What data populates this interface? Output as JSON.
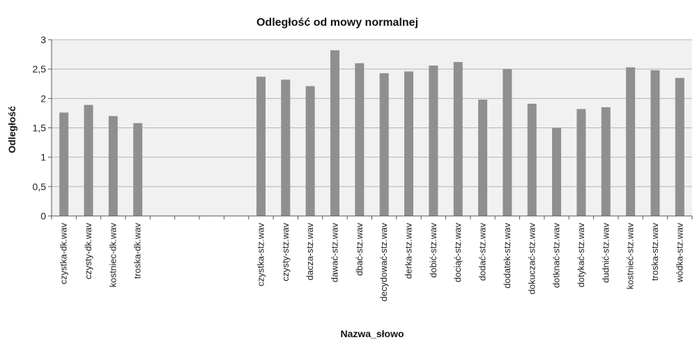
{
  "chart_data": {
    "type": "bar",
    "title": "Odległość od mowy normalnej",
    "xlabel": "Nazwa_słowo",
    "ylabel": "Odległość",
    "ylim": [
      0,
      3
    ],
    "yticks": [
      "0",
      "0,5",
      "1",
      "1,5",
      "2",
      "2,5",
      "3"
    ],
    "grid": true,
    "categories": [
      "czystka-dk.wav",
      "czysty-dk.wav",
      "kostniec-dk.wav",
      "troska-dk.wav",
      "",
      "",
      "",
      "",
      "czystka-stz.wav",
      "czysty-stz.wav",
      "dacza-stz.wav",
      "dawać-stz.wav",
      "dbać-stz.wav",
      "decydować-stz.wav",
      "derka-stz.wav",
      "dobić-stz.wav",
      "dociąć-stz.wav",
      "dodać-stz.wav",
      "dodatek-stz.wav",
      "dokuczać-stz.wav",
      "dotknać-stz.wav",
      "dotykać-stz.wav",
      "dudnić-stz.wav",
      "kostnieć-stz.wav",
      "troska-stz.wav",
      "wódka-stz.wav"
    ],
    "values": [
      1.76,
      1.89,
      1.7,
      1.58,
      null,
      null,
      null,
      null,
      2.37,
      2.32,
      2.21,
      2.82,
      2.6,
      2.43,
      2.46,
      2.56,
      2.62,
      1.98,
      2.5,
      1.91,
      1.5,
      1.82,
      1.85,
      2.53,
      2.48,
      2.35
    ],
    "colors": {
      "bar": "#8f8f8f",
      "plot_background": "#f1f1f1",
      "gridline": "#b4b4b4",
      "axis": "#555555"
    }
  }
}
